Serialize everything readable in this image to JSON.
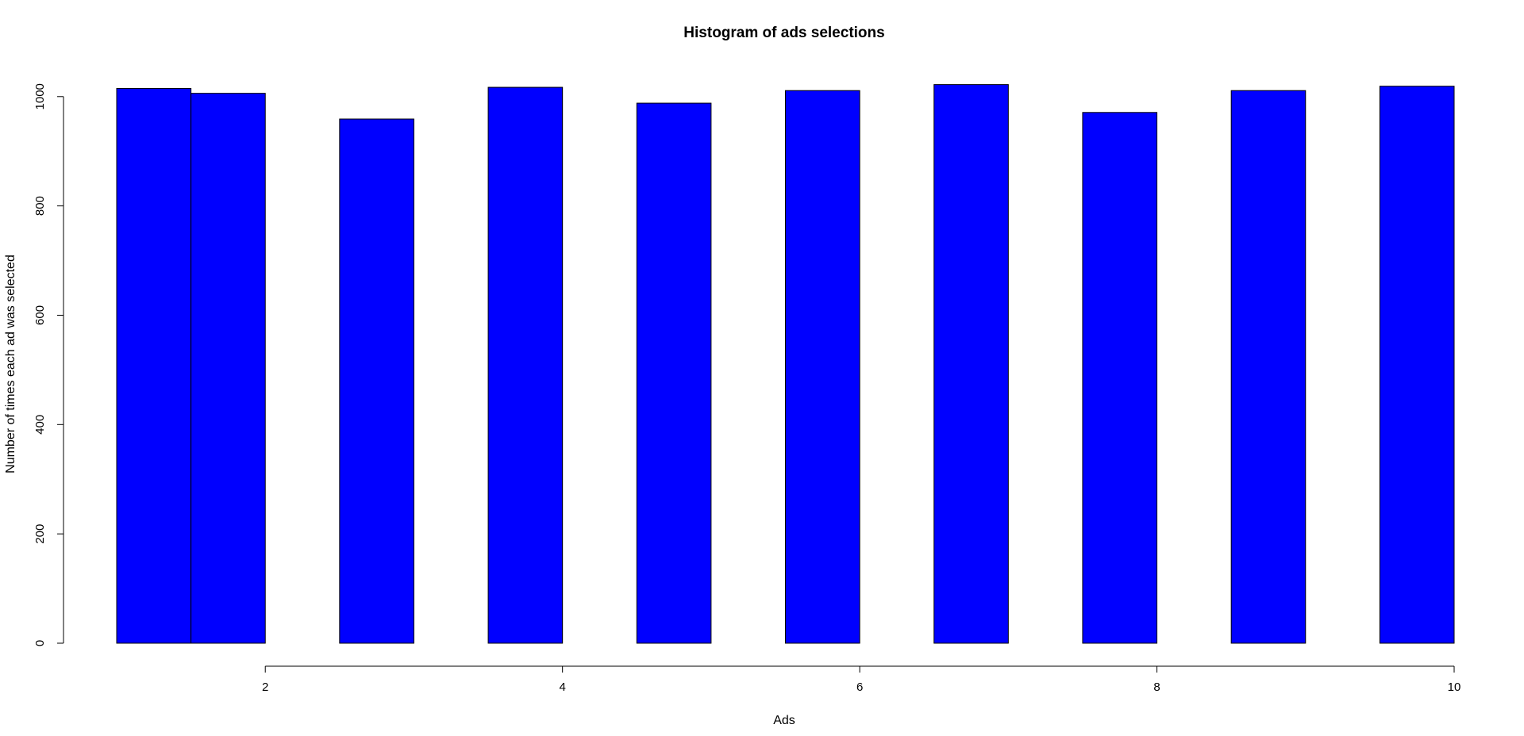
{
  "chart_data": {
    "type": "bar",
    "title": "Histogram of ads selections",
    "xlabel": "Ads",
    "ylabel": "Number of times each ad was selected",
    "xlim": [
      1,
      10
    ],
    "ylim": [
      0,
      1020
    ],
    "x_ticks": [
      "2",
      "4",
      "6",
      "8",
      "10"
    ],
    "y_ticks": [
      "0",
      "200",
      "400",
      "600",
      "800",
      "1000"
    ],
    "bins": [
      {
        "start": 1.0,
        "end": 1.5,
        "value": 1015
      },
      {
        "start": 1.5,
        "end": 2.0,
        "value": 1006
      },
      {
        "start": 2.5,
        "end": 3.0,
        "value": 959
      },
      {
        "start": 3.5,
        "end": 4.0,
        "value": 1017
      },
      {
        "start": 4.5,
        "end": 5.0,
        "value": 988
      },
      {
        "start": 5.5,
        "end": 6.0,
        "value": 1011
      },
      {
        "start": 6.5,
        "end": 7.0,
        "value": 1022
      },
      {
        "start": 7.5,
        "end": 8.0,
        "value": 971
      },
      {
        "start": 8.5,
        "end": 9.0,
        "value": 1011
      },
      {
        "start": 9.5,
        "end": 10.0,
        "value": 1019
      }
    ],
    "bar_color": "#0000FF",
    "border_color": "#000000",
    "grid": false,
    "legend": "none"
  }
}
